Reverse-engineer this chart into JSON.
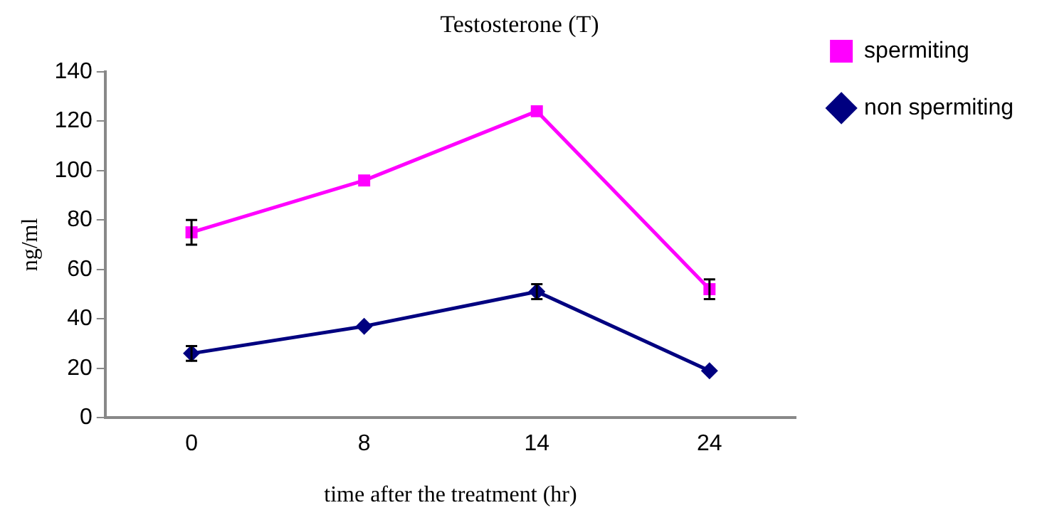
{
  "chart_data": {
    "type": "line",
    "title": "Testosterone (T)",
    "xlabel": "time after the treatment (hr)",
    "ylabel": "ng/ml",
    "categories": [
      "0",
      "8",
      "14",
      "24"
    ],
    "series": [
      {
        "name": "spermiting",
        "color": "#ff00ff",
        "marker": "square",
        "values": [
          75,
          96,
          124,
          52
        ],
        "errors": [
          5,
          null,
          null,
          4
        ]
      },
      {
        "name": "non spermiting",
        "color": "#000080",
        "marker": "diamond",
        "values": [
          26,
          37,
          51,
          19
        ],
        "errors": [
          3,
          null,
          3,
          null
        ]
      }
    ],
    "ylim": [
      0,
      140
    ],
    "yticks": [
      0,
      20,
      40,
      60,
      80,
      100,
      120,
      140
    ],
    "grid": false,
    "legend": "right"
  }
}
